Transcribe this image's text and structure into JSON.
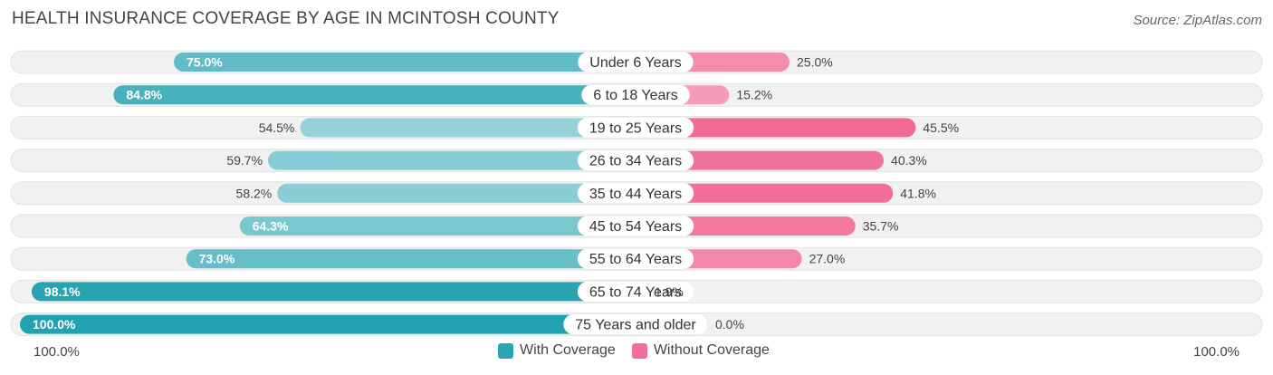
{
  "title": "HEALTH INSURANCE COVERAGE BY AGE IN MCINTOSH COUNTY",
  "source": "Source: ZipAtlas.com",
  "axis": {
    "left_label": "100.0%",
    "right_label": "100.0%"
  },
  "legend": [
    {
      "label": "With Coverage",
      "color": "#2ba5b3"
    },
    {
      "label": "Without Coverage",
      "color": "#f07098"
    }
  ],
  "chart_data": {
    "type": "bar",
    "orientation": "horizontal-diverging",
    "title": "HEALTH INSURANCE COVERAGE BY AGE IN MCINTOSH COUNTY",
    "xlim": [
      -100,
      100
    ],
    "categories": [
      "Under 6 Years",
      "6 to 18 Years",
      "19 to 25 Years",
      "26 to 34 Years",
      "35 to 44 Years",
      "45 to 54 Years",
      "55 to 64 Years",
      "65 to 74 Years",
      "75 Years and older"
    ],
    "series": [
      {
        "name": "With Coverage",
        "values": [
          75.0,
          84.8,
          54.5,
          59.7,
          58.2,
          64.3,
          73.0,
          98.1,
          100.0
        ],
        "labels": [
          "75.0%",
          "84.8%",
          "54.5%",
          "59.7%",
          "58.2%",
          "64.3%",
          "73.0%",
          "98.1%",
          "100.0%"
        ]
      },
      {
        "name": "Without Coverage",
        "values": [
          25.0,
          15.2,
          45.5,
          40.3,
          41.8,
          35.7,
          27.0,
          1.9,
          0.0
        ],
        "labels": [
          "25.0%",
          "15.2%",
          "45.5%",
          "40.3%",
          "41.8%",
          "35.7%",
          "27.0%",
          "1.9%",
          "0.0%"
        ]
      }
    ]
  }
}
